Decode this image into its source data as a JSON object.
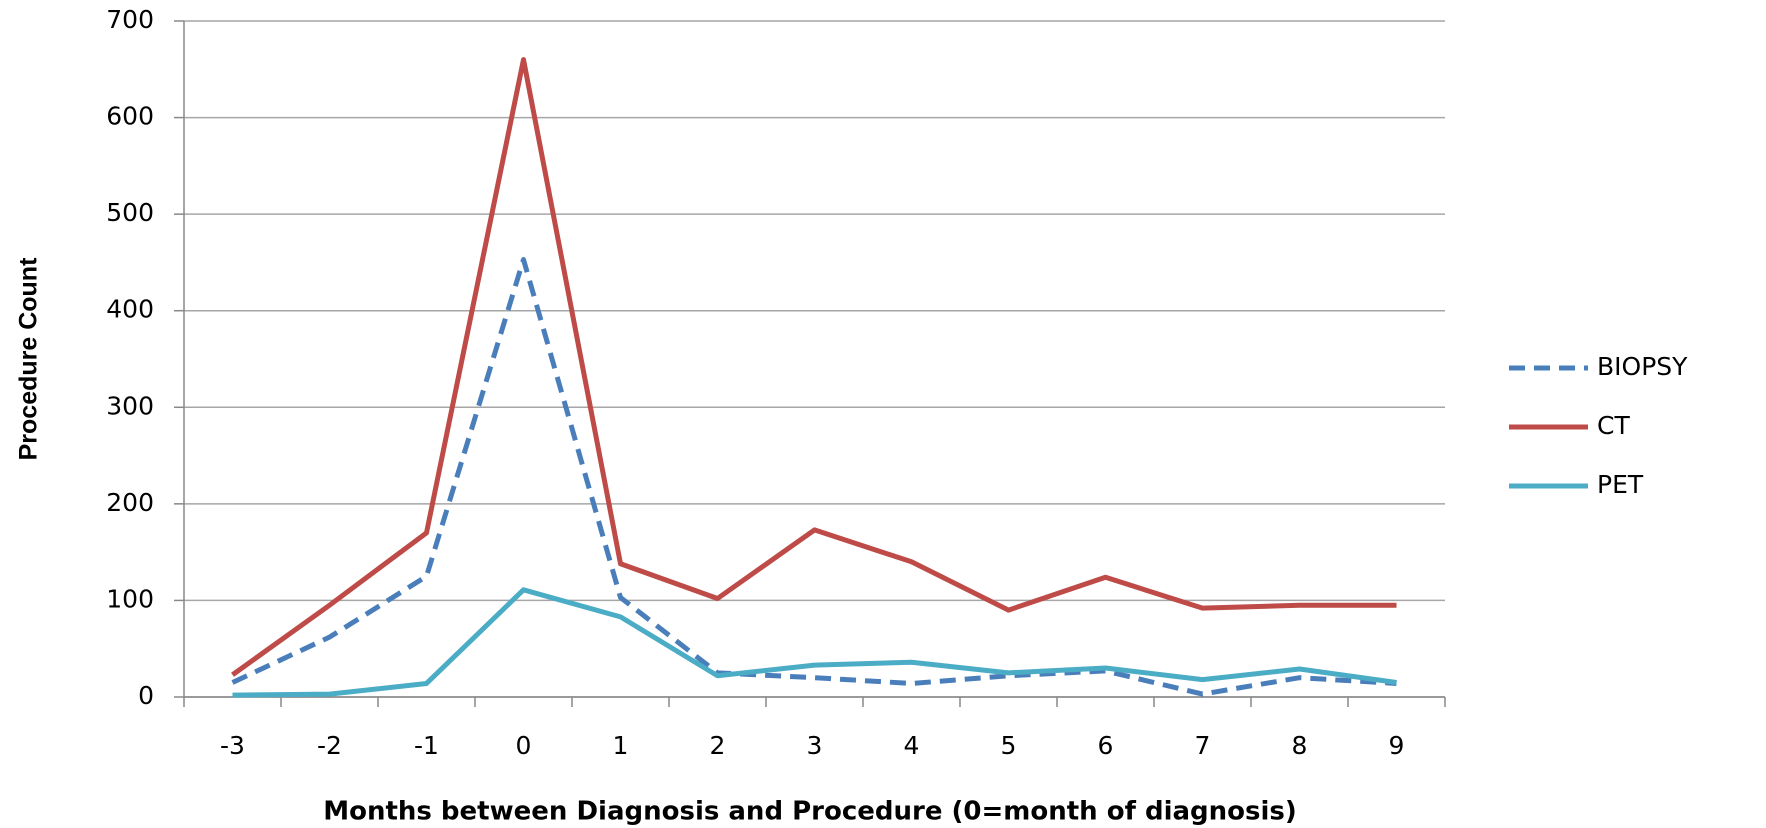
{
  "chart_data": {
    "type": "line",
    "x_label": "Months between Diagnosis and Procedure (0=month of diagnosis)",
    "y_label": "Procedure Count",
    "categories": [
      "-3",
      "-2",
      "-1",
      "0",
      "1",
      "2",
      "3",
      "4",
      "5",
      "6",
      "7",
      "8",
      "9"
    ],
    "series": [
      {
        "name": "BIOPSY",
        "color": "#4a7ebb",
        "dashed": true,
        "values": [
          15,
          62,
          125,
          453,
          103,
          25,
          20,
          14,
          22,
          27,
          3,
          20,
          14
        ]
      },
      {
        "name": "CT",
        "color": "#be4b48",
        "dashed": false,
        "values": [
          23,
          95,
          170,
          660,
          138,
          102,
          173,
          140,
          90,
          124,
          92,
          95,
          95
        ]
      },
      {
        "name": "PET",
        "color": "#4bacc6",
        "dashed": false,
        "values": [
          2,
          3,
          14,
          111,
          83,
          22,
          33,
          36,
          25,
          30,
          18,
          29,
          15
        ]
      }
    ],
    "ylim": [
      0,
      700
    ],
    "yticks": [
      0,
      100,
      200,
      300,
      400,
      500,
      600,
      700
    ],
    "grid": true,
    "legend": "right"
  }
}
